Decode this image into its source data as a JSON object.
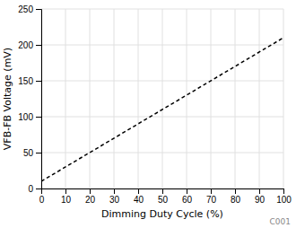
{
  "chart_data": {
    "type": "line",
    "xlabel": "Dimming Duty Cycle (%)",
    "ylabel": "VFB-FB Voltage (mV)",
    "annotation": "C001",
    "x": [
      0,
      100
    ],
    "series": [
      {
        "color": "#000000",
        "line_style": "dashed",
        "values": [
          10,
          210
        ]
      }
    ],
    "xlim": [
      0,
      100
    ],
    "ylim": [
      0,
      250
    ],
    "xticks": [
      0,
      10,
      20,
      30,
      40,
      50,
      60,
      70,
      80,
      90,
      100
    ],
    "yticks": [
      0,
      50,
      100,
      150,
      200,
      250
    ],
    "grid": true
  }
}
